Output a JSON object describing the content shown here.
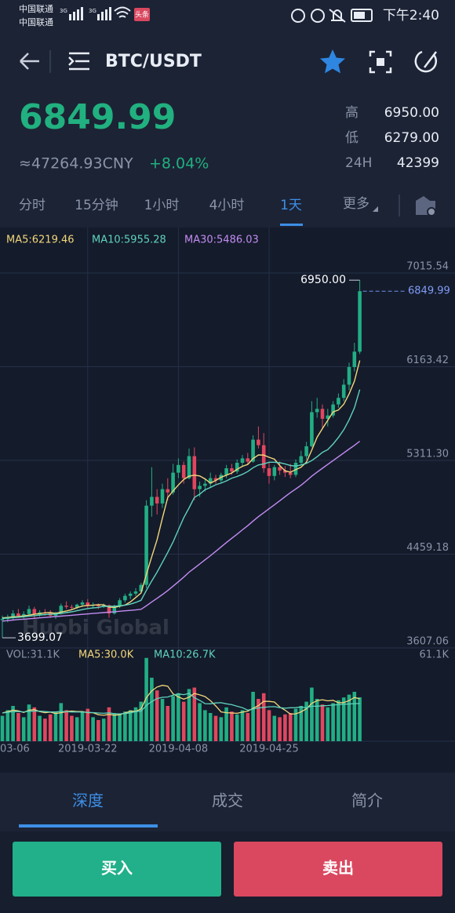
{
  "status_bar": {
    "carrier1": "中国联通",
    "carrier2": "中国联通",
    "net1": "3G",
    "net2": "3G",
    "app_badge": "头条",
    "time": "下午2:40"
  },
  "header": {
    "pair": "BTC/USDT"
  },
  "ticker": {
    "price": "6849.99",
    "cny": "≈47264.93CNY",
    "change": "+8.04%",
    "stats": [
      {
        "label": "高",
        "value": "6950.00"
      },
      {
        "label": "低",
        "value": "6279.00"
      },
      {
        "label": "24H",
        "value": "42399"
      }
    ]
  },
  "intervals": [
    "分时",
    "15分钟",
    "1小时",
    "4小时",
    "1天",
    "更多"
  ],
  "watermark": "Huobi Global",
  "chart_data": {
    "type": "candlestick",
    "categories": [
      "03-06",
      null,
      null,
      null,
      null,
      null,
      null,
      null,
      null,
      null,
      null,
      null,
      null,
      null,
      null,
      null,
      "2019-03-22",
      null,
      null,
      null,
      null,
      null,
      null,
      null,
      null,
      null,
      null,
      null,
      null,
      null,
      null,
      null,
      null,
      "2019-04-08",
      null,
      null,
      null,
      null,
      null,
      null,
      null,
      null,
      null,
      null,
      null,
      null,
      null,
      null,
      null,
      null,
      "2019-04-25",
      null,
      null,
      null,
      null,
      null,
      null,
      null,
      null,
      null,
      null,
      null,
      null,
      null,
      null,
      null,
      null,
      null
    ],
    "open": [
      3860,
      3870,
      3880,
      3920,
      3900,
      3915,
      3960,
      3910,
      3930,
      3925,
      3900,
      3920,
      3990,
      3980,
      3975,
      4000,
      4020,
      3990,
      4000,
      3985,
      3995,
      3920,
      3985,
      4040,
      4080,
      4100,
      4120,
      4180,
      4900,
      4980,
      4920,
      5050,
      5020,
      5200,
      5270,
      5150,
      5350,
      5050,
      5080,
      5100,
      5150,
      5130,
      5180,
      5240,
      5210,
      5290,
      5330,
      5300,
      5500,
      5450,
      5240,
      5170,
      5250,
      5220,
      5200,
      5180,
      5290,
      5350,
      5440,
      5750,
      5780,
      5690,
      5720,
      5820,
      5880,
      6000,
      6160,
      6300
    ],
    "high": [
      3900,
      3910,
      3950,
      3960,
      3940,
      3990,
      3980,
      3950,
      3960,
      3950,
      3935,
      4010,
      4030,
      4000,
      4010,
      4040,
      4050,
      4020,
      4010,
      4010,
      4000,
      4000,
      4060,
      4100,
      4120,
      4150,
      4200,
      4950,
      5250,
      5050,
      5100,
      5150,
      5280,
      5330,
      5300,
      5420,
      5430,
      5120,
      5150,
      5200,
      5180,
      5200,
      5270,
      5280,
      5320,
      5360,
      5380,
      5540,
      5620,
      5560,
      5300,
      5270,
      5300,
      5260,
      5280,
      5320,
      5400,
      5480,
      5850,
      5880,
      5820,
      5780,
      5850,
      5920,
      6050,
      6200,
      6380,
      6950
    ],
    "low": [
      3699.07,
      3840,
      3860,
      3880,
      3870,
      3900,
      3880,
      3890,
      3900,
      3880,
      3870,
      3910,
      3960,
      3950,
      3960,
      3980,
      3970,
      3970,
      3960,
      3970,
      3880,
      3910,
      3970,
      4020,
      4050,
      4080,
      4100,
      4150,
      4800,
      4820,
      4880,
      4950,
      5000,
      5150,
      5100,
      5140,
      4950,
      4980,
      5030,
      5060,
      5100,
      5110,
      5150,
      5180,
      5190,
      5250,
      5270,
      5290,
      5420,
      5200,
      5100,
      5130,
      5180,
      5160,
      5150,
      5160,
      5270,
      5320,
      5430,
      5700,
      5600,
      5620,
      5700,
      5790,
      5850,
      5950,
      6120,
      6279
    ],
    "close": [
      3870,
      3880,
      3920,
      3900,
      3915,
      3960,
      3910,
      3930,
      3925,
      3900,
      3920,
      3990,
      3980,
      3975,
      4000,
      4020,
      3990,
      4000,
      3985,
      3995,
      3920,
      3985,
      4040,
      4080,
      4100,
      4120,
      4180,
      4900,
      4980,
      4920,
      5050,
      5020,
      5200,
      5270,
      5150,
      5350,
      5050,
      5080,
      5100,
      5150,
      5130,
      5180,
      5240,
      5210,
      5290,
      5330,
      5300,
      5500,
      5450,
      5240,
      5170,
      5250,
      5220,
      5200,
      5180,
      5290,
      5350,
      5440,
      5750,
      5780,
      5690,
      5720,
      5820,
      5880,
      6000,
      6160,
      6300,
      6849.99
    ],
    "max_label": "6950.00",
    "up_color": "#22ae84",
    "down_color": "#e0475f",
    "series": [
      {
        "name": "MA5:6219.46",
        "color": "#f2d77a",
        "values": [
          3880,
          3884,
          3889,
          3893,
          3897,
          3905,
          3913,
          3919,
          3926,
          3928,
          3920,
          3933,
          3943,
          3954,
          3973,
          3987,
          3993,
          3995,
          4000,
          3998,
          3978,
          3976,
          3986,
          3997,
          4025,
          4065,
          4106,
          4276,
          4436,
          4590,
          4786,
          4974,
          5034,
          5088,
          5138,
          5168,
          5177,
          5170,
          5143,
          5106,
          5129,
          5158,
          5177,
          5197,
          5231,
          5258,
          5275,
          5328,
          5361,
          5360,
          5340,
          5323,
          5265,
          5217,
          5204,
          5228,
          5249,
          5296,
          5405,
          5522,
          5601,
          5676,
          5752,
          5770,
          5822,
          5916,
          6032,
          6219.46
        ]
      },
      {
        "name": "MA10:5955.28",
        "color": "#5fd3bd",
        "values": [
          3875,
          3878,
          3882,
          3886,
          3890,
          3895,
          3900,
          3905,
          3910,
          3912,
          3915,
          3920,
          3928,
          3935,
          3945,
          3955,
          3965,
          3970,
          3975,
          3985,
          3985,
          3985,
          3990,
          3995,
          4005,
          4020,
          4040,
          4130,
          4215,
          4295,
          4385,
          4475,
          4570,
          4680,
          4790,
          4880,
          4975,
          5005,
          5045,
          5065,
          5090,
          5105,
          5125,
          5150,
          5165,
          5185,
          5210,
          5245,
          5270,
          5280,
          5295,
          5295,
          5290,
          5280,
          5265,
          5260,
          5270,
          5285,
          5310,
          5345,
          5385,
          5410,
          5460,
          5520,
          5590,
          5680,
          5790,
          5955.28
        ]
      },
      {
        "name": "MA30:5486.03",
        "color": "#c38cf2",
        "values": [
          3850,
          3855,
          3860,
          3865,
          3868,
          3872,
          3876,
          3880,
          3884,
          3888,
          3892,
          3896,
          3900,
          3904,
          3908,
          3912,
          3916,
          3920,
          3924,
          3928,
          3932,
          3936,
          3940,
          3944,
          3948,
          3952,
          3958,
          3990,
          4025,
          4058,
          4092,
          4128,
          4168,
          4208,
          4250,
          4295,
          4332,
          4370,
          4408,
          4445,
          4485,
          4525,
          4565,
          4603,
          4640,
          4680,
          4718,
          4760,
          4800,
          4836,
          4872,
          4908,
          4945,
          4982,
          5018,
          5052,
          5086,
          5126,
          5168,
          5205,
          5240,
          5275,
          5310,
          5345,
          5380,
          5415,
          5448,
          5486.03
        ]
      }
    ],
    "ylim": [
      3607.06,
      7429.1
    ],
    "yticks": [
      3607.06,
      {
        "value": 4459.18,
        "label": "4459.18"
      },
      {
        "value": 5311.3,
        "label": "5311.30"
      },
      6163.42,
      7015.54
    ],
    "grid": true,
    "volume": {
      "title": "VOL:31.1K",
      "values": [
        18000,
        22000,
        25000,
        20000,
        17000,
        26000,
        24000,
        18000,
        16000,
        19000,
        21000,
        27000,
        22000,
        18000,
        17000,
        21000,
        23000,
        17000,
        15000,
        16000,
        24000,
        20000,
        19000,
        21000,
        22000,
        24000,
        28000,
        59000,
        45000,
        36000,
        30000,
        25000,
        32000,
        34000,
        28000,
        37000,
        38000,
        27000,
        22000,
        20000,
        18000,
        17000,
        24000,
        21000,
        19000,
        22000,
        20000,
        35000,
        30000,
        34000,
        22000,
        18000,
        17000,
        19000,
        20000,
        23000,
        25000,
        28000,
        38000,
        30000,
        26000,
        24000,
        27000,
        29000,
        31000,
        33000,
        35000,
        31100
      ],
      "series": [
        {
          "name": "MA5:30.0K",
          "color": "#f2d77a",
          "values": [
            20000,
            21000,
            22000,
            21500,
            20400,
            22000,
            22400,
            21000,
            20200,
            20600,
            19600,
            20200,
            21000,
            21400,
            21000,
            21000,
            20200,
            20200,
            18800,
            18400,
            19000,
            18400,
            18800,
            20000,
            21200,
            21200,
            22800,
            30800,
            35600,
            38400,
            39600,
            39000,
            33600,
            31400,
            29800,
            31200,
            33800,
            32800,
            31600,
            28800,
            25000,
            20800,
            20200,
            20000,
            19800,
            20600,
            21200,
            23400,
            25200,
            28200,
            28200,
            27800,
            24200,
            22000,
            19200,
            19400,
            20800,
            23000,
            26800,
            28800,
            29400,
            28600,
            29000,
            27200,
            27400,
            28800,
            31000,
            30000
          ]
        },
        {
          "name": "MA10:26.7K",
          "color": "#5fd3bd",
          "values": [
            20000,
            20500,
            21000,
            21000,
            20800,
            21200,
            21400,
            21300,
            21000,
            20800,
            20800,
            21100,
            20900,
            20700,
            20800,
            20600,
            20500,
            20300,
            20000,
            19800,
            20100,
            19500,
            19400,
            19600,
            20100,
            21000,
            21200,
            25400,
            28100,
            30200,
            31100,
            31300,
            32600,
            33500,
            33000,
            33800,
            30800,
            28900,
            26600,
            26500,
            27100,
            27300,
            26500,
            25900,
            24800,
            23800,
            22000,
            22800,
            23600,
            24000,
            24400,
            24500,
            23800,
            23400,
            23700,
            23800,
            24300,
            23600,
            24800,
            24800,
            25100,
            25300,
            25600,
            25900,
            26200,
            26400,
            26600,
            26700
          ]
        }
      ],
      "ylim": [
        0,
        61100
      ],
      "yticks": [
        {
          "value": 61100,
          "label": "61.1K"
        }
      ]
    }
  },
  "tabs": [
    "深度",
    "成交",
    "简介"
  ],
  "buttons": {
    "buy": "买入",
    "sell": "卖出"
  }
}
